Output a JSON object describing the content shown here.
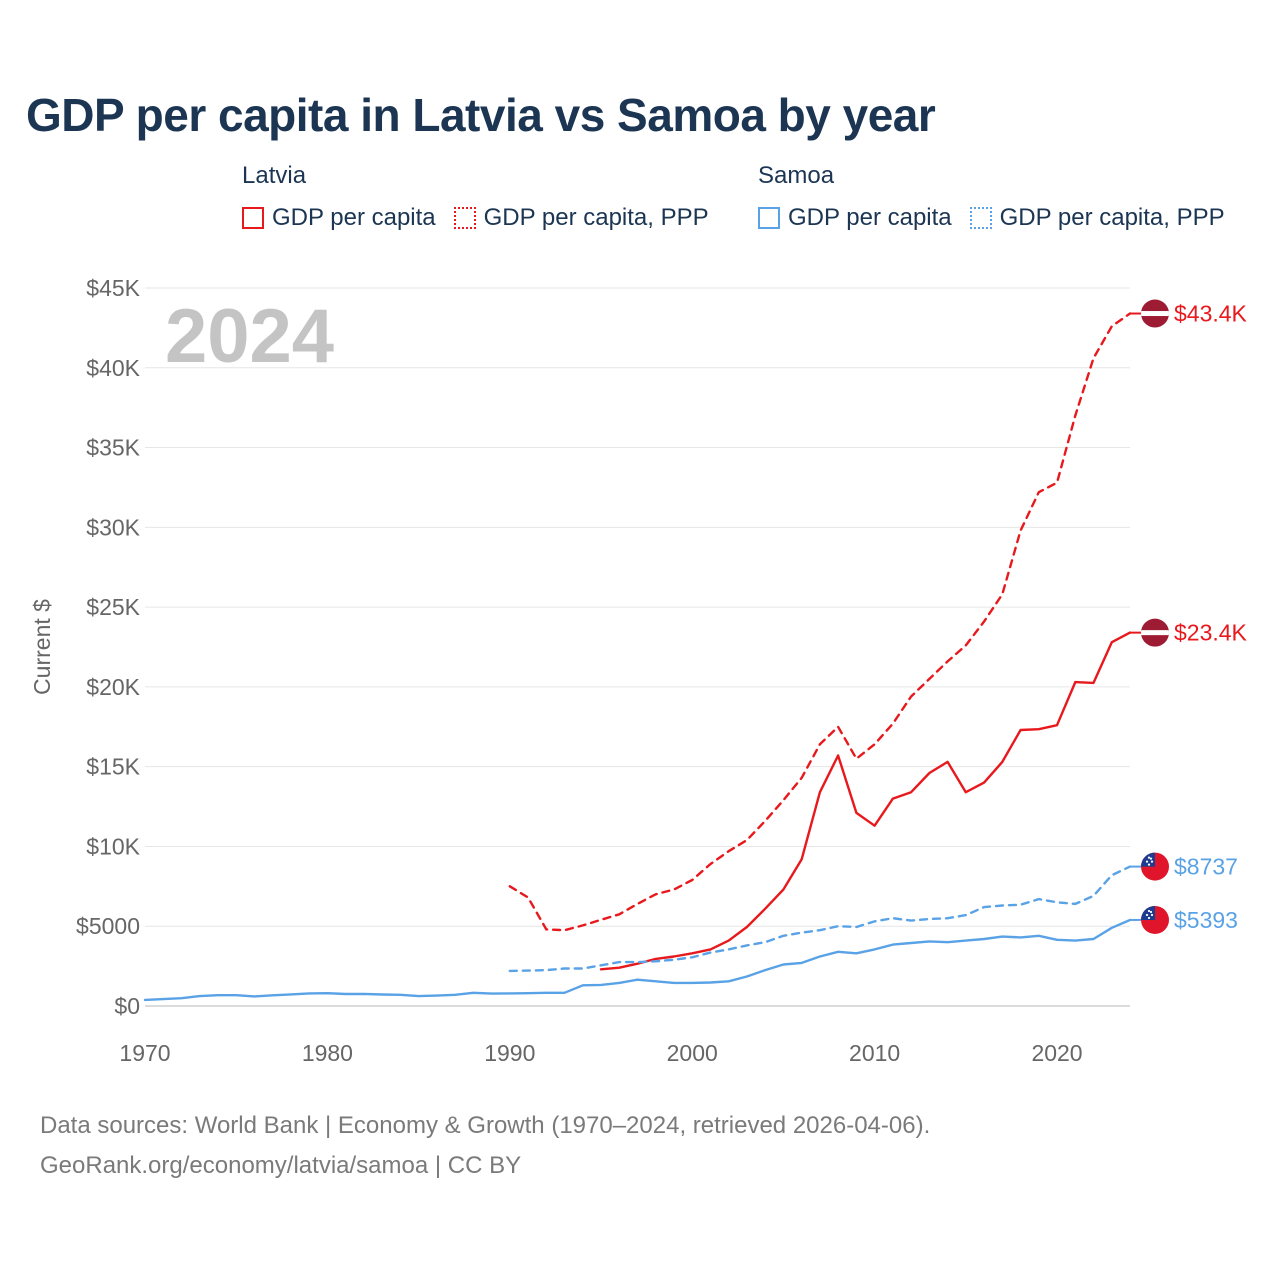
{
  "title": "GDP per capita in Latvia vs Samoa by year",
  "legend": {
    "groups": [
      {
        "country": "Latvia",
        "color": "#e8191d",
        "items": [
          {
            "label": "GDP per capita",
            "style": "solid"
          },
          {
            "label": "GDP per capita, PPP",
            "style": "dotted"
          }
        ]
      },
      {
        "country": "Samoa",
        "color": "#5aa2e6",
        "items": [
          {
            "label": "GDP per capita",
            "style": "solid"
          },
          {
            "label": "GDP per capita, PPP",
            "style": "dotted"
          }
        ]
      }
    ]
  },
  "chart_data": {
    "type": "line",
    "title": "GDP per capita in Latvia vs Samoa by year",
    "year_label": "2024",
    "ylabel": "Current $",
    "xlabel": "",
    "xlim": [
      1970,
      2024
    ],
    "ylim": [
      0,
      45000
    ],
    "x_ticks": [
      1970,
      1980,
      1990,
      2000,
      2010,
      2020
    ],
    "y_ticks": [
      {
        "value": 0,
        "label": "$0"
      },
      {
        "value": 5000,
        "label": "$5000"
      },
      {
        "value": 10000,
        "label": "$10K"
      },
      {
        "value": 15000,
        "label": "$15K"
      },
      {
        "value": 20000,
        "label": "$20K"
      },
      {
        "value": 25000,
        "label": "$25K"
      },
      {
        "value": 30000,
        "label": "$30K"
      },
      {
        "value": 35000,
        "label": "$35K"
      },
      {
        "value": 40000,
        "label": "$40K"
      },
      {
        "value": 45000,
        "label": "$45K"
      }
    ],
    "grid": true,
    "series": [
      {
        "name": "Latvia GDP per capita, PPP",
        "country": "Latvia",
        "color": "#e8191d",
        "dashed": true,
        "end_label": "$43.4K",
        "flag": "latvia-flag-icon",
        "x": [
          1990,
          1991,
          1992,
          1993,
          1994,
          1995,
          1996,
          1997,
          1998,
          1999,
          2000,
          2001,
          2002,
          2003,
          2004,
          2005,
          2006,
          2007,
          2008,
          2009,
          2010,
          2011,
          2012,
          2013,
          2014,
          2015,
          2016,
          2017,
          2018,
          2019,
          2020,
          2021,
          2022,
          2023,
          2024
        ],
        "values": [
          7500,
          6800,
          4800,
          4750,
          5050,
          5400,
          5750,
          6400,
          7000,
          7300,
          7900,
          8900,
          9700,
          10400,
          11600,
          12900,
          14300,
          16400,
          17500,
          15500,
          16400,
          17700,
          19400,
          20500,
          21600,
          22600,
          24100,
          25800,
          29800,
          32200,
          32800,
          37000,
          40600,
          42600,
          43400
        ]
      },
      {
        "name": "Latvia GDP per capita",
        "country": "Latvia",
        "color": "#e8191d",
        "dashed": false,
        "end_label": "$23.4K",
        "flag": "latvia-flag-icon",
        "x": [
          1995,
          1996,
          1997,
          1998,
          1999,
          2000,
          2001,
          2002,
          2003,
          2004,
          2005,
          2006,
          2007,
          2008,
          2009,
          2010,
          2011,
          2012,
          2013,
          2014,
          2015,
          2016,
          2017,
          2018,
          2019,
          2020,
          2021,
          2022,
          2023,
          2024
        ],
        "values": [
          2300,
          2400,
          2650,
          2950,
          3100,
          3300,
          3550,
          4100,
          4950,
          6100,
          7300,
          9200,
          13400,
          15700,
          12100,
          11300,
          13000,
          13400,
          14600,
          15300,
          13400,
          14000,
          15300,
          17300,
          17350,
          17600,
          20300,
          20250,
          22800,
          23400
        ]
      },
      {
        "name": "Samoa GDP per capita, PPP",
        "country": "Samoa",
        "color": "#5aa2e6",
        "dashed": true,
        "end_label": "$8737",
        "flag": "samoa-flag-icon",
        "x": [
          1990,
          1991,
          1992,
          1993,
          1994,
          1995,
          1996,
          1997,
          1998,
          1999,
          2000,
          2001,
          2002,
          2003,
          2004,
          2005,
          2006,
          2007,
          2008,
          2009,
          2010,
          2011,
          2012,
          2013,
          2014,
          2015,
          2016,
          2017,
          2018,
          2019,
          2020,
          2021,
          2022,
          2023,
          2024
        ],
        "values": [
          2200,
          2220,
          2250,
          2350,
          2350,
          2550,
          2750,
          2750,
          2800,
          2900,
          3050,
          3350,
          3550,
          3800,
          4000,
          4400,
          4600,
          4750,
          5000,
          4950,
          5300,
          5500,
          5350,
          5450,
          5500,
          5700,
          6200,
          6300,
          6350,
          6700,
          6500,
          6400,
          6900,
          8200,
          8737
        ]
      },
      {
        "name": "Samoa GDP per capita",
        "country": "Samoa",
        "color": "#5aa2e6",
        "dashed": false,
        "end_label": "$5393",
        "flag": "samoa-flag-icon",
        "x": [
          1970,
          1971,
          1972,
          1973,
          1974,
          1975,
          1976,
          1977,
          1978,
          1979,
          1980,
          1981,
          1982,
          1983,
          1984,
          1985,
          1986,
          1987,
          1988,
          1989,
          1990,
          1991,
          1992,
          1993,
          1994,
          1995,
          1996,
          1997,
          1998,
          1999,
          2000,
          2001,
          2002,
          2003,
          2004,
          2005,
          2006,
          2007,
          2008,
          2009,
          2010,
          2011,
          2012,
          2013,
          2014,
          2015,
          2016,
          2017,
          2018,
          2019,
          2020,
          2021,
          2022,
          2023,
          2024
        ],
        "values": [
          380,
          430,
          490,
          620,
          680,
          680,
          600,
          670,
          730,
          790,
          800,
          750,
          760,
          720,
          700,
          620,
          650,
          700,
          830,
          780,
          790,
          800,
          830,
          830,
          1300,
          1320,
          1450,
          1650,
          1550,
          1450,
          1450,
          1470,
          1550,
          1850,
          2250,
          2600,
          2700,
          3100,
          3400,
          3300,
          3550,
          3850,
          3950,
          4050,
          4000,
          4100,
          4200,
          4350,
          4300,
          4400,
          4150,
          4100,
          4200,
          4900,
          5393
        ]
      }
    ]
  },
  "footer": {
    "line1": "Data sources: World Bank | Economy & Growth (1970–2024, retrieved 2026-04-06).",
    "line2": "GeoRank.org/economy/latvia/samoa | CC BY"
  }
}
